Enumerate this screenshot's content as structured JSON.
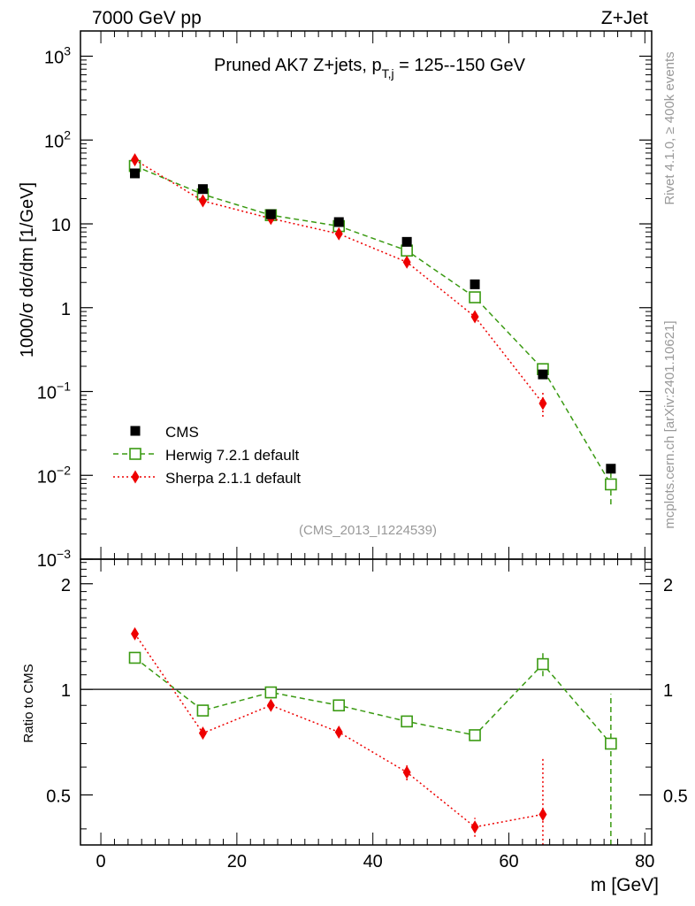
{
  "header": {
    "left_title": "7000 GeV pp",
    "right_title": "Z+Jet"
  },
  "side_text": {
    "rivet": "Rivet 4.1.0, ≥ 400k events",
    "mcplots": "mcplots.cern.ch [arXiv:2401.10621]"
  },
  "colors": {
    "cms": "#000000",
    "herwig": "#3a9a12",
    "sherpa": "#ee0000",
    "ref_name": "#999999"
  },
  "chart_data": [
    {
      "type": "scatter",
      "panel": "main",
      "title_main": "Pruned AK7 Z+jets, p",
      "title_sub": "T,j",
      "title_rest": " = 125--150 GeV",
      "ylabel": "1000/σ  dσ/dm [1/GeV]",
      "yscale": "log",
      "ylim": [
        0.001,
        2000
      ],
      "xlim": [
        -3,
        81
      ],
      "ytick_labels": [
        {
          "base": "10",
          "exp": "3",
          "value": 1000
        },
        {
          "base": "10",
          "exp": "2",
          "value": 100
        },
        {
          "base": "10",
          "exp": "",
          "value": 10
        },
        {
          "base": "1",
          "exp": "",
          "value": 1
        },
        {
          "base": "10",
          "exp": "−1",
          "value": 0.1
        },
        {
          "base": "10",
          "exp": "−2",
          "value": 0.01
        },
        {
          "base": "10",
          "exp": "−3",
          "value": 0.001
        }
      ],
      "ref_name": "(CMS_2013_I1224539)",
      "series": [
        {
          "name": "CMS",
          "style": "data",
          "x": [
            5,
            15,
            25,
            35,
            45,
            55,
            65,
            75
          ],
          "y": [
            40,
            26,
            13,
            10.5,
            6.1,
            1.9,
            0.16,
            0.012
          ]
        },
        {
          "name": "Herwig 7.2.1 default",
          "style": "herwig",
          "x": [
            5,
            15,
            25,
            35,
            45,
            55,
            65,
            75
          ],
          "y": [
            49,
            22.5,
            12.7,
            9.4,
            4.8,
            1.33,
            0.185,
            0.0078
          ],
          "err": [
            null,
            null,
            null,
            null,
            null,
            null,
            [
              0.165,
              0.205
            ],
            [
              0.0045,
              0.011
            ]
          ]
        },
        {
          "name": "Sherpa 2.1.1 default",
          "style": "sherpa",
          "x": [
            5,
            15,
            25,
            35,
            45,
            55,
            65
          ],
          "y": [
            58,
            18.8,
            11.6,
            7.6,
            3.5,
            0.78,
            0.072
          ],
          "err": [
            null,
            null,
            null,
            null,
            null,
            [
              0.7,
              0.85
            ],
            [
              0.05,
              0.1
            ]
          ]
        }
      ]
    },
    {
      "type": "line",
      "panel": "ratio",
      "ylabel": "Ratio to CMS",
      "xlabel": "m [GeV]",
      "yscale": "log",
      "ylim": [
        0.36,
        2.35
      ],
      "xlim": [
        -3,
        81
      ],
      "ytick_labels": [
        "2",
        "1",
        "0.5"
      ],
      "ytick_values": [
        2,
        1,
        0.5
      ],
      "xtick_labels": [
        "0",
        "20",
        "40",
        "60",
        "80"
      ],
      "xtick_values": [
        0,
        20,
        40,
        60,
        80
      ],
      "series": [
        {
          "name": "Herwig 7.2.1 default",
          "style": "herwig",
          "x": [
            5,
            15,
            25,
            35,
            45,
            55,
            65,
            75
          ],
          "y": [
            1.23,
            0.87,
            0.98,
            0.9,
            0.81,
            0.74,
            1.18,
            0.7
          ],
          "err": [
            null,
            null,
            null,
            null,
            null,
            null,
            [
              1.09,
              1.29
            ],
            [
              0.36,
              0.97
            ]
          ]
        },
        {
          "name": "Sherpa 2.1.1 default",
          "style": "sherpa",
          "x": [
            5,
            15,
            25,
            35,
            45,
            55,
            65
          ],
          "y": [
            1.44,
            0.75,
            0.9,
            0.755,
            0.58,
            0.405,
            0.44
          ],
          "err": [
            null,
            null,
            null,
            null,
            [
              0.55,
              0.61
            ],
            [
              0.38,
              0.43
            ],
            [
              0.35,
              0.64
            ]
          ]
        }
      ]
    }
  ]
}
